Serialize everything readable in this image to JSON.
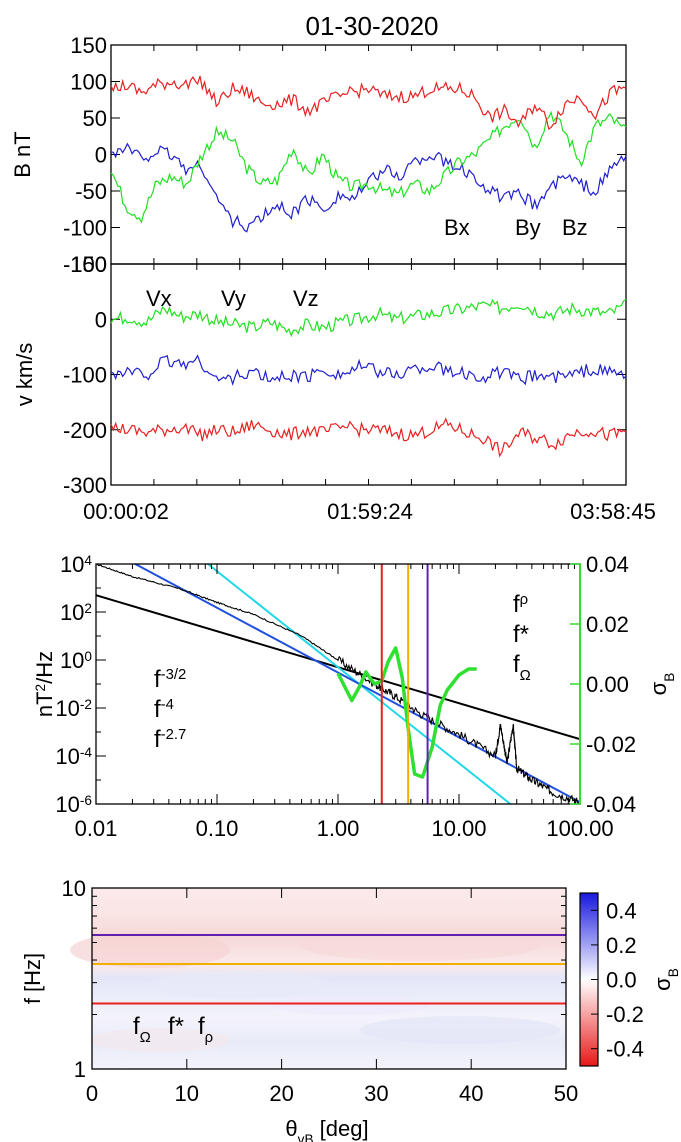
{
  "title": "01-30-2020",
  "colors": {
    "x": "#2020d0",
    "y": "#20e020",
    "z": "#e82020",
    "black": "#000000",
    "cyan": "#20d8e8",
    "blue": "#2050e0",
    "orange": "#f0b000",
    "purple": "#6020b0",
    "red": "#e82020",
    "green": "#30e030"
  },
  "chart_data": [
    {
      "type": "line",
      "ylabel": "B nT",
      "ylim": [
        -150,
        150
      ],
      "yticks": [
        "150",
        "100",
        "50",
        "0",
        "-50",
        "-100",
        "-150"
      ],
      "legend": [
        "Bx",
        "By",
        "Bz"
      ],
      "series": [
        {
          "name": "Bx",
          "values": [
            0,
            10,
            -5,
            5,
            0,
            -20,
            -15,
            -60,
            -90,
            -100,
            -85,
            -70,
            -80,
            -60,
            -75,
            -55,
            -60,
            -40,
            -20,
            -30,
            -10,
            0,
            -10,
            -20,
            -30,
            -50,
            -60,
            -55,
            -70,
            -45,
            -30,
            -40,
            -50,
            -20,
            0
          ]
        },
        {
          "name": "By",
          "values": [
            -20,
            -70,
            -85,
            -40,
            -30,
            -40,
            0,
            30,
            20,
            -20,
            -40,
            -35,
            10,
            -30,
            0,
            -35,
            -45,
            -40,
            -50,
            -55,
            -40,
            -50,
            -30,
            -10,
            0,
            20,
            40,
            55,
            10,
            60,
            30,
            -10,
            40,
            50,
            30
          ]
        },
        {
          "name": "Bz",
          "values": [
            90,
            95,
            85,
            95,
            100,
            95,
            100,
            70,
            90,
            85,
            70,
            70,
            75,
            60,
            70,
            80,
            85,
            90,
            80,
            80,
            80,
            90,
            90,
            90,
            80,
            50,
            60,
            40,
            70,
            40,
            70,
            80,
            55,
            85,
            90
          ]
        }
      ]
    },
    {
      "type": "line",
      "ylabel": "v km/s",
      "ylim": [
        -300,
        100
      ],
      "yticks": [
        "100",
        "0",
        "-100",
        "-200",
        "-300"
      ],
      "xticks": [
        "00:00:02",
        "01:59:24",
        "03:58:45"
      ],
      "legend": [
        "Vx",
        "Vy",
        "Vz"
      ],
      "series": [
        {
          "name": "Vx",
          "values": [
            -100,
            -95,
            -100,
            -75,
            -80,
            -75,
            -110,
            -105,
            -95,
            -110,
            -100,
            -105,
            -90,
            -100,
            -85,
            -95,
            -100,
            -90,
            -85,
            -95,
            -100,
            -105,
            -95,
            -110,
            -100,
            -105,
            -100,
            -90,
            -95,
            -100
          ]
        },
        {
          "name": "Vy",
          "values": [
            0,
            5,
            -5,
            20,
            5,
            10,
            -5,
            -10,
            -15,
            -5,
            -20,
            -10,
            -15,
            -5,
            0,
            10,
            0,
            5,
            10,
            15,
            20,
            25,
            20,
            30,
            15,
            10,
            20,
            15,
            10,
            25
          ]
        },
        {
          "name": "Vz",
          "values": [
            -195,
            -200,
            -205,
            -200,
            -195,
            -210,
            -200,
            -205,
            -190,
            -200,
            -210,
            -200,
            -205,
            -195,
            -200,
            -200,
            -205,
            -210,
            -200,
            -190,
            -205,
            -215,
            -240,
            -205,
            -215,
            -225,
            -205,
            -200,
            -210,
            -205
          ]
        }
      ]
    },
    {
      "type": "line",
      "xscale": "log",
      "yscale": "log",
      "xlim": [
        0.01,
        100
      ],
      "ylim": [
        1e-06,
        10000.0
      ],
      "ylabel": "nT²/Hz",
      "y2label": "σB",
      "y2lim": [
        -0.04,
        0.04
      ],
      "xticks": [
        "0.01",
        "0.10",
        "1.00",
        "10.00",
        "100.00"
      ],
      "yticks": [
        "10^4",
        "10^2",
        "10^0",
        "10^-2",
        "10^-4",
        "10^-6"
      ],
      "y2ticks": [
        "0.04",
        "0.02",
        "0.00",
        "-0.02",
        "-0.04"
      ],
      "legend": [
        "f^-3/2",
        "f^-4",
        "f^-2.7"
      ],
      "vlines": [
        {
          "name": "fΩ",
          "x": 2.3
        },
        {
          "name": "f*",
          "x": 3.8
        },
        {
          "name": "fρ",
          "x": 5.5
        }
      ],
      "fits": [
        {
          "name": "f^-3/2",
          "slope": -1.5,
          "at": 1,
          "value": 0.5
        },
        {
          "name": "f^-4",
          "slope": -4,
          "at": 1,
          "value": 0.5
        },
        {
          "name": "f^-2.7",
          "slope": -2.7,
          "at": 1,
          "value": 0.3
        }
      ],
      "spectrum": {
        "x": [
          0.01,
          0.02,
          0.05,
          0.1,
          0.2,
          0.5,
          1,
          2,
          3,
          5,
          10,
          20,
          22,
          25,
          28,
          30,
          40,
          60,
          100
        ],
        "y": [
          10000,
          3000,
          900,
          250,
          80,
          10,
          1,
          0.1,
          0.03,
          0.005,
          0.0008,
          0.0001,
          0.002,
          5e-05,
          0.002,
          3e-05,
          1e-05,
          3e-06,
          1.2e-06
        ]
      },
      "sigma_b": {
        "x": [
          1,
          1.3,
          1.5,
          1.7,
          2.0,
          2.3,
          2.6,
          3.0,
          3.4,
          3.8,
          4.3,
          5,
          6,
          7,
          8,
          10,
          12,
          14
        ],
        "y": [
          0.0035,
          -0.0055,
          -0.001,
          0.004,
          0.0,
          0.001,
          0.0075,
          0.012,
          0.002,
          -0.015,
          -0.03,
          -0.031,
          -0.021,
          -0.007,
          -0.002,
          0.003,
          0.005,
          0.005
        ]
      }
    },
    {
      "type": "heatmap",
      "xlabel": "θvB [deg]",
      "ylabel": "f [Hz]",
      "xlim": [
        0,
        50
      ],
      "ylim": [
        1,
        10
      ],
      "yscale": "log",
      "xticks": [
        "0",
        "10",
        "20",
        "30",
        "40",
        "50"
      ],
      "yticks": [
        "10",
        "1"
      ],
      "colorbar_label": "σB",
      "colorbar_range": [
        -0.5,
        0.5
      ],
      "colorbar_ticks": [
        "0.4",
        "0.2",
        "0.0",
        "-0.2",
        "-0.4"
      ],
      "hlines": [
        {
          "name": "fρ",
          "y": 5.5
        },
        {
          "name": "f*",
          "y": 3.8
        },
        {
          "name": "fΩ",
          "y": 2.3
        }
      ]
    }
  ]
}
